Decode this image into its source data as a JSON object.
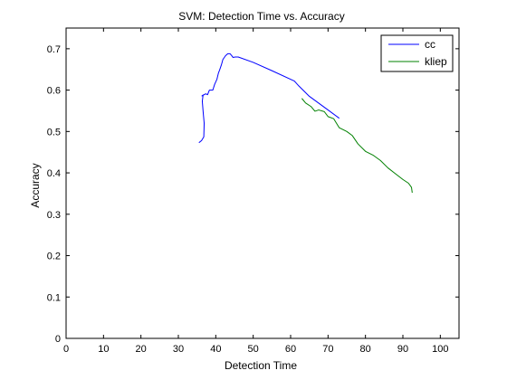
{
  "chart_data": {
    "type": "line",
    "title": "SVM: Detection Time vs. Accuracy",
    "xlabel": "Detection Time",
    "ylabel": "Accuracy",
    "xlim": [
      0,
      105
    ],
    "ylim": [
      0,
      0.75
    ],
    "xticks": [
      0,
      10,
      20,
      30,
      40,
      50,
      60,
      70,
      80,
      90,
      100
    ],
    "yticks": [
      0,
      0.1,
      0.2,
      0.3,
      0.4,
      0.5,
      0.6,
      0.7
    ],
    "xtick_labels": [
      "0",
      "10",
      "20",
      "30",
      "40",
      "50",
      "60",
      "70",
      "80",
      "90",
      "100"
    ],
    "ytick_labels": [
      "0",
      "0.1",
      "0.2",
      "0.3",
      "0.4",
      "0.5",
      "0.6",
      "0.7"
    ],
    "grid": false,
    "legend_position": "top-right",
    "series": [
      {
        "name": "cc",
        "color": "#0000ff",
        "x": [
          35.5,
          36.2,
          36.8,
          36.9,
          36.6,
          36.4,
          36.6,
          36.3,
          37.3,
          37.8,
          38.3,
          39.2,
          39.7,
          40.3,
          40.7,
          41.0,
          41.5,
          41.9,
          42.6,
          43.2,
          43.8,
          44.2,
          44.6,
          45.2,
          46.0,
          50.0,
          55.0,
          61.0,
          62.2,
          65.0,
          70.0,
          73.0
        ],
        "y": [
          0.473,
          0.478,
          0.487,
          0.52,
          0.55,
          0.573,
          0.588,
          0.586,
          0.591,
          0.589,
          0.6,
          0.6,
          0.614,
          0.626,
          0.641,
          0.648,
          0.661,
          0.674,
          0.683,
          0.688,
          0.688,
          0.684,
          0.679,
          0.68,
          0.68,
          0.667,
          0.647,
          0.622,
          0.61,
          0.585,
          0.552,
          0.532
        ]
      },
      {
        "name": "kliep",
        "color": "#008000",
        "x": [
          63.0,
          64.0,
          65.5,
          66.5,
          67.5,
          69.0,
          70.0,
          71.5,
          73.0,
          75.0,
          76.5,
          78.0,
          80.0,
          82.0,
          84.0,
          86.0,
          88.0,
          90.0,
          91.5,
          92.3,
          92.5
        ],
        "y": [
          0.58,
          0.569,
          0.56,
          0.549,
          0.552,
          0.548,
          0.536,
          0.531,
          0.509,
          0.5,
          0.49,
          0.47,
          0.452,
          0.443,
          0.43,
          0.412,
          0.398,
          0.384,
          0.375,
          0.365,
          0.352
        ]
      }
    ]
  }
}
